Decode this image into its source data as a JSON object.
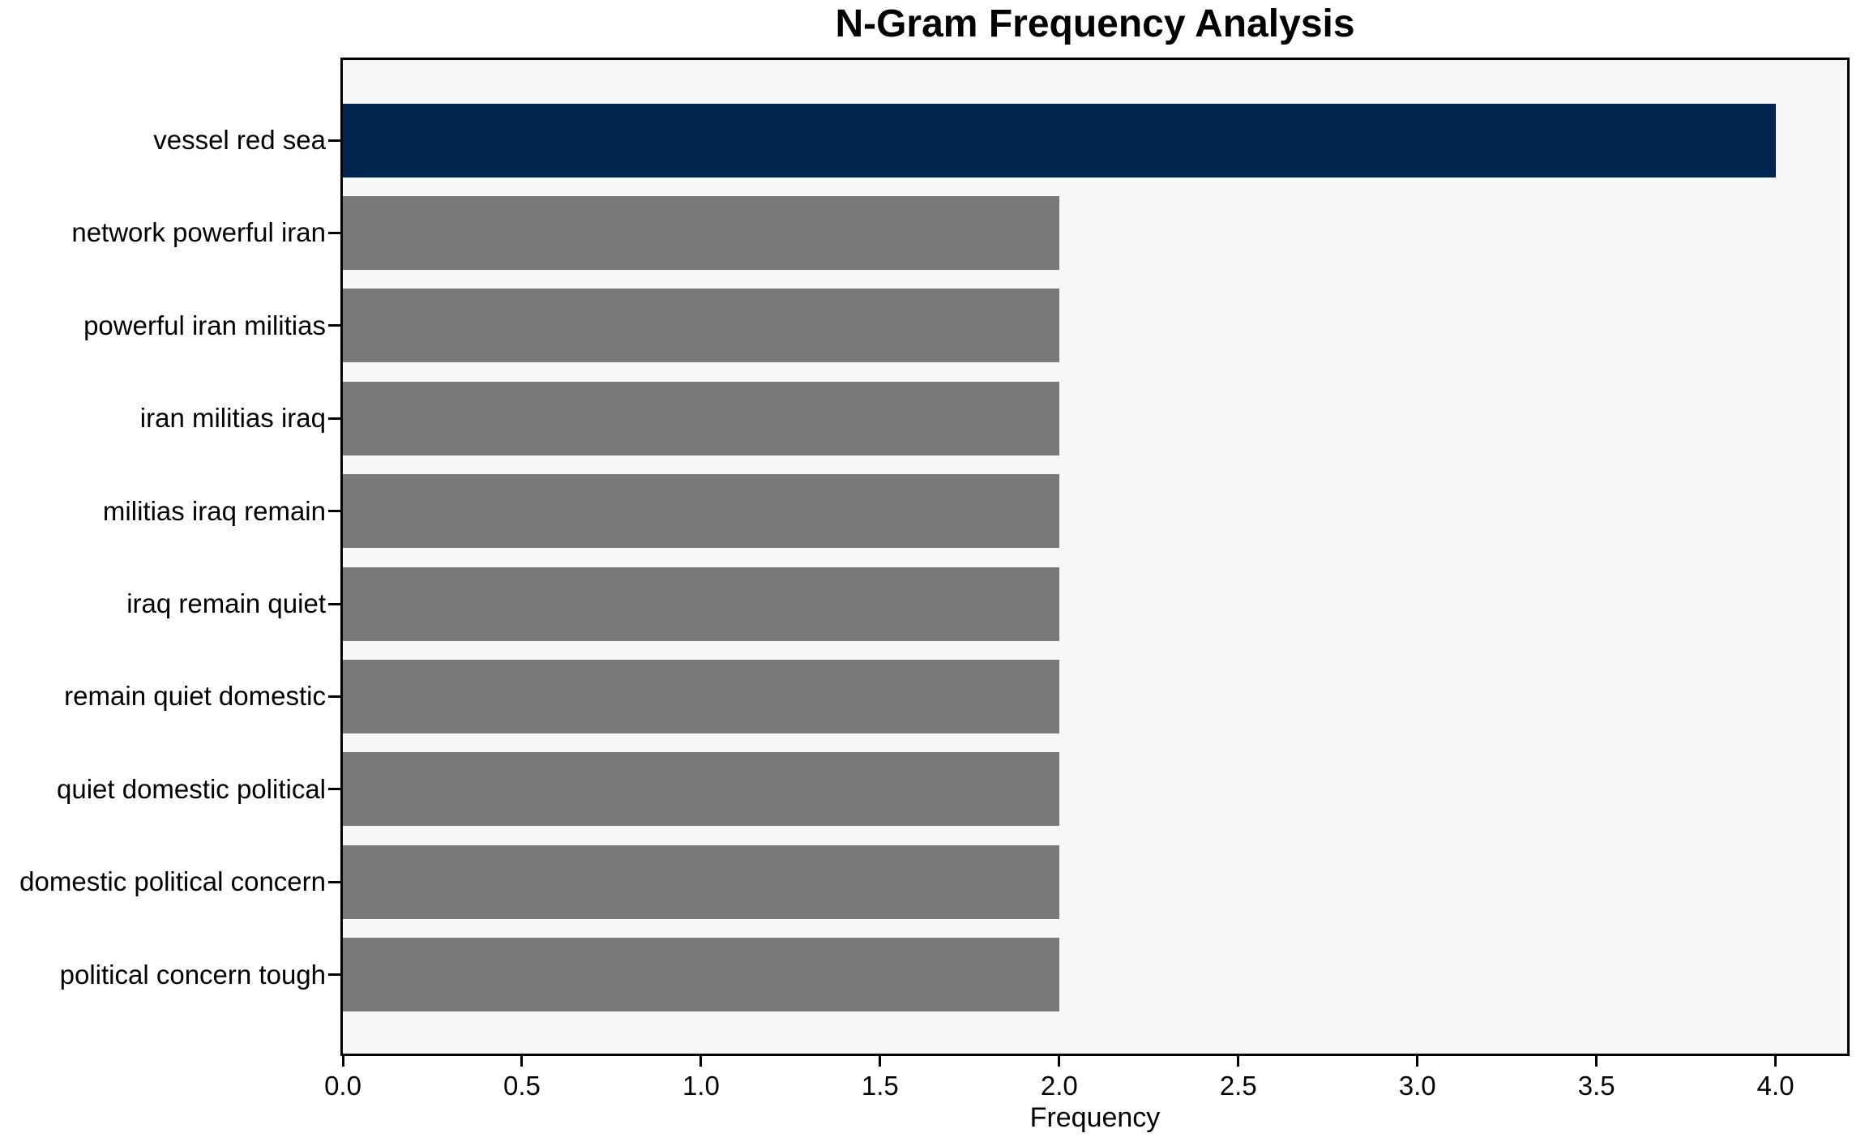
{
  "chart_data": {
    "type": "bar",
    "orientation": "horizontal",
    "title": "N-Gram Frequency Analysis",
    "xlabel": "Frequency",
    "ylabel": "",
    "categories": [
      "vessel red sea",
      "network powerful iran",
      "powerful iran militias",
      "iran militias iraq",
      "militias iraq remain",
      "iraq remain quiet",
      "remain quiet domestic",
      "quiet domestic political",
      "domestic political concern",
      "political concern tough"
    ],
    "values": [
      4,
      2,
      2,
      2,
      2,
      2,
      2,
      2,
      2,
      2
    ],
    "bar_colors": [
      "#01254e",
      "#7b7a78",
      "#7b7a78",
      "#7b7a78",
      "#7b7a78",
      "#7b7a78",
      "#7b7a78",
      "#7b7a78",
      "#7b7a78",
      "#7b7a78"
    ],
    "xlim": [
      0,
      4.2
    ],
    "xticks": {
      "values": [
        0,
        0.5,
        1,
        1.5,
        2,
        2.5,
        3,
        3.5,
        4
      ],
      "labels": [
        "0.0",
        "0.5",
        "1.0",
        "1.5",
        "2.0",
        "2.5",
        "3.0",
        "3.5",
        "4.0"
      ]
    },
    "grid": false,
    "legend": null,
    "colors": {
      "highlight_bar": "#01254e",
      "default_bar": "#7b7a78",
      "plot_background": "#f7f7f7",
      "figure_background": "#ffffff",
      "spine": "#000000",
      "text": "#000000"
    }
  }
}
